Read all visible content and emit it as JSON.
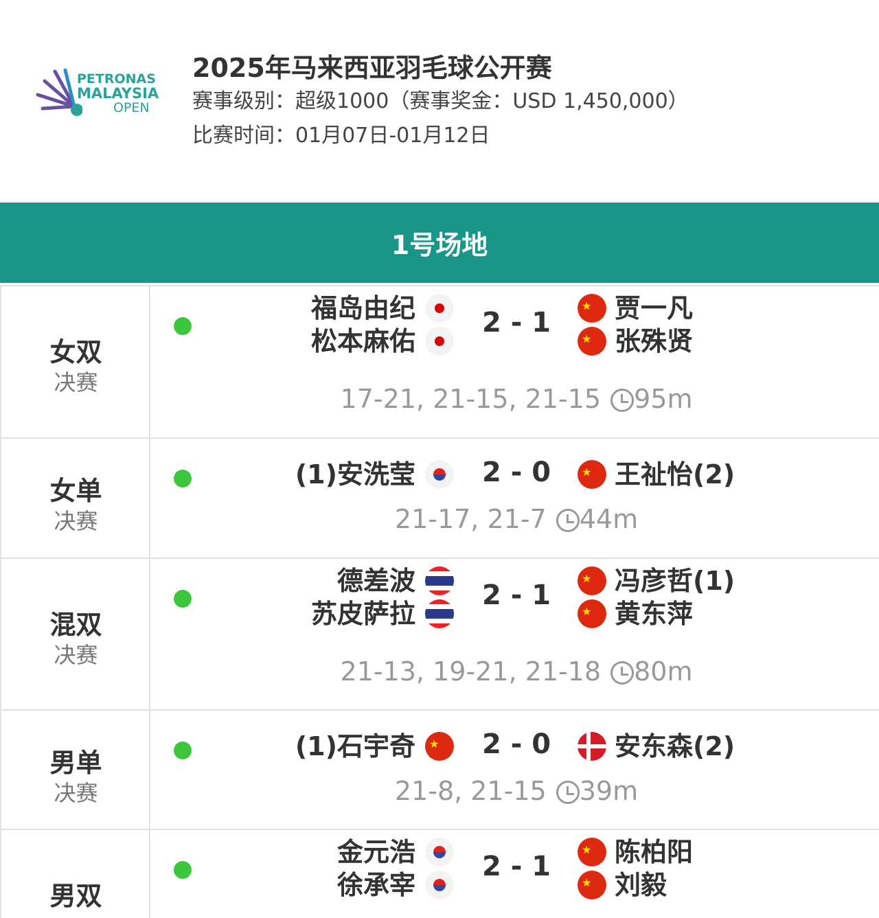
{
  "header": {
    "logo": {
      "line1": "PETRONAS",
      "line2": "MALAYSIA",
      "line3": "OPEN"
    },
    "title": "2025年马来西亚羽毛球公开赛",
    "level": "赛事级别：超级1000（赛事奖金：USD 1,450,000）",
    "dates": "比赛时间：01月07日-01月12日"
  },
  "court": "1号场地",
  "colors": {
    "accent": "#1a9688",
    "live_dot": "#3cc63c"
  },
  "matches": [
    {
      "event": "女双",
      "round": "决赛",
      "left": [
        {
          "name": "福岛由纪",
          "flag": "jp"
        },
        {
          "name": "松本麻佑",
          "flag": "jp"
        }
      ],
      "score": "2 - 1",
      "right": [
        {
          "name": "贾一凡",
          "flag": "cn"
        },
        {
          "name": "张殊贤",
          "flag": "cn"
        }
      ],
      "sets": "17-21, 21-15, 21-15",
      "duration": "95m"
    },
    {
      "event": "女单",
      "round": "决赛",
      "left": [
        {
          "name": "(1)安洗莹",
          "flag": "kr"
        }
      ],
      "score": "2 - 0",
      "right": [
        {
          "name": "王祉怡(2)",
          "flag": "cn"
        }
      ],
      "sets": "21-17, 21-7",
      "duration": "44m"
    },
    {
      "event": "混双",
      "round": "决赛",
      "left": [
        {
          "name": "德差波",
          "flag": "th"
        },
        {
          "name": "苏皮萨拉",
          "flag": "th"
        }
      ],
      "score": "2 - 1",
      "right": [
        {
          "name": "冯彦哲(1)",
          "flag": "cn"
        },
        {
          "name": "黄东萍",
          "flag": "cn"
        }
      ],
      "sets": "21-13, 19-21, 21-18",
      "duration": "80m"
    },
    {
      "event": "男单",
      "round": "决赛",
      "left": [
        {
          "name": "(1)石宇奇",
          "flag": "cn"
        }
      ],
      "score": "2 - 0",
      "right": [
        {
          "name": "安东森(2)",
          "flag": "dk"
        }
      ],
      "sets": "21-8, 21-15",
      "duration": "39m"
    },
    {
      "event": "男双",
      "round": "",
      "left": [
        {
          "name": "金元浩",
          "flag": "kr"
        },
        {
          "name": "徐承宰",
          "flag": "kr"
        }
      ],
      "score": "2 - 1",
      "right": [
        {
          "name": "陈柏阳",
          "flag": "cn"
        },
        {
          "name": "刘毅",
          "flag": "cn"
        }
      ],
      "sets": "",
      "duration": ""
    }
  ]
}
